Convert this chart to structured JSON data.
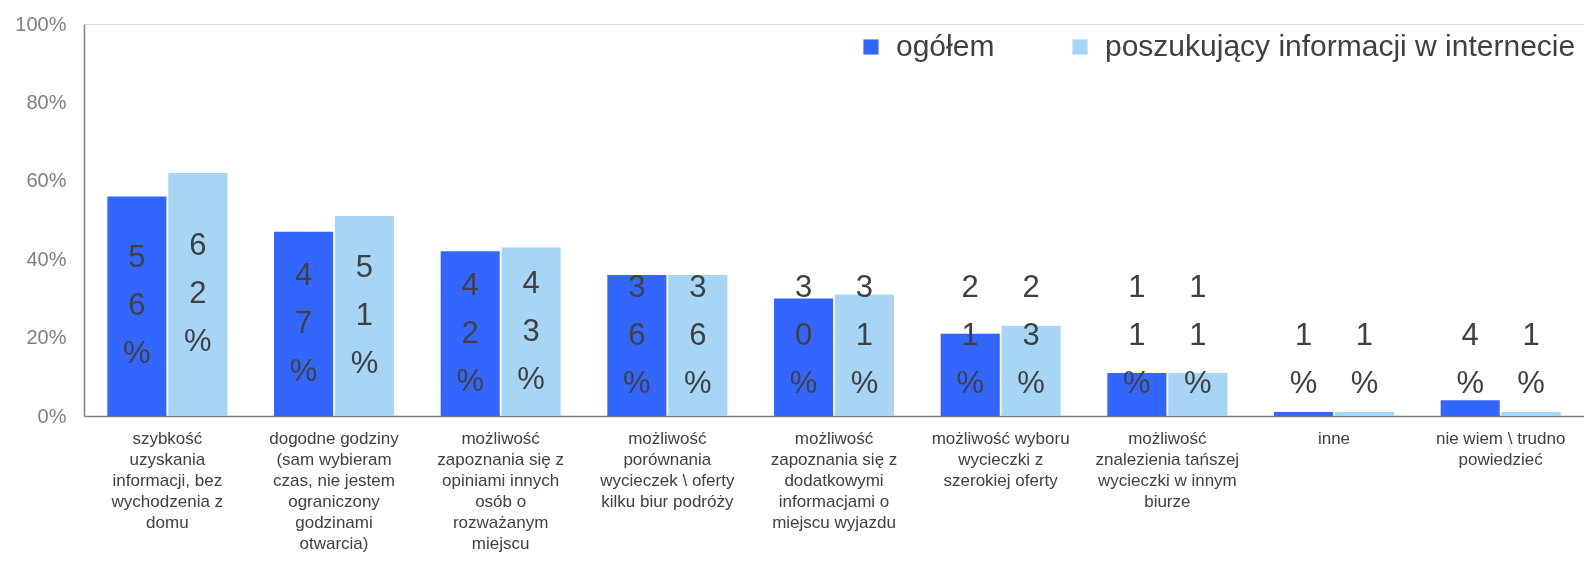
{
  "chart_data": {
    "type": "bar",
    "categories": [
      "szybkość uzyskania informacji, bez wychodzenia z domu",
      "dogodne godziny (sam wybieram czas, nie jestem ograniczony godzinami otwarcia)",
      "możliwość zapoznania się z opiniami innych osób o rozważanym miejscu",
      "możliwość porównania wycieczek \\ oferty kilku biur podróży",
      "możliwość zapoznania się z dodatkowymi informacjami o miejscu wyjazdu",
      "możliwość wyboru wycieczki z szerokiej oferty",
      "możliwość znalezienia tańszej wycieczki w innym biurze",
      "inne",
      "nie wiem \\ trudno powiedzieć"
    ],
    "series": [
      {
        "name": "ogółem",
        "color": "#3366ff",
        "values": [
          56,
          47,
          42,
          36,
          30,
          21,
          11,
          1,
          4
        ],
        "value_labels": [
          "56%",
          "47%",
          "42%",
          "36%",
          "30%",
          "21%",
          "11%",
          "1%",
          "4%"
        ]
      },
      {
        "name": "poszukujący informacji w internecie",
        "color": "#a6d5f5",
        "values": [
          62,
          51,
          43,
          36,
          31,
          23,
          11,
          1,
          1
        ],
        "value_labels": [
          "62%",
          "51%",
          "43%",
          "36%",
          "31%",
          "23%",
          "11%",
          "1%",
          "1%"
        ]
      }
    ],
    "ylim": [
      0,
      100
    ],
    "yticks": [
      {
        "value": 0,
        "label": "0%"
      },
      {
        "value": 20,
        "label": "20%"
      },
      {
        "value": 40,
        "label": "40%"
      },
      {
        "value": 60,
        "label": "60%"
      },
      {
        "value": 80,
        "label": "80%"
      },
      {
        "value": 100,
        "label": "100%"
      }
    ],
    "legend": "top right"
  }
}
